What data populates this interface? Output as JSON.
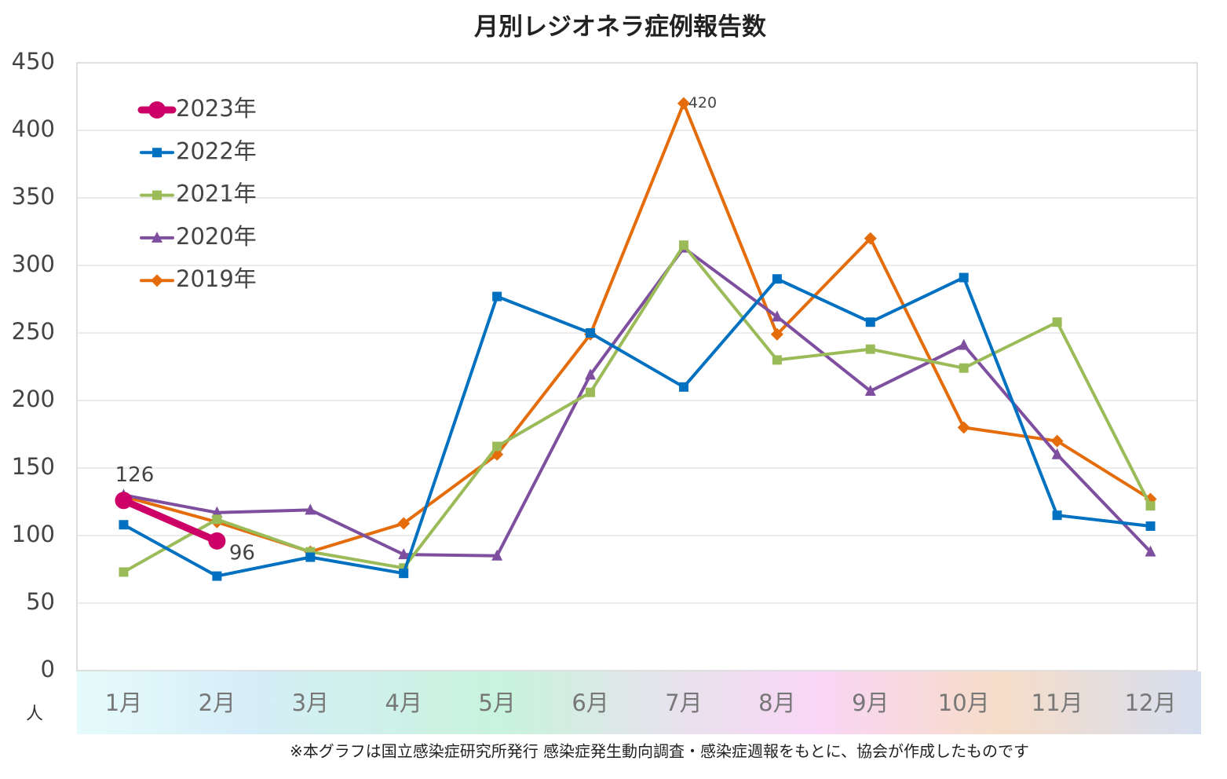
{
  "chart_data": {
    "type": "line",
    "title": "月別レジオネラ症例報告数",
    "y_unit": "人",
    "note": "※本グラフは国立感染症研究所発行 感染症発生動向調査・感染症週報をもとに、協会が作成したものです",
    "categories": [
      "1月",
      "2月",
      "3月",
      "4月",
      "5月",
      "6月",
      "7月",
      "8月",
      "9月",
      "10月",
      "11月",
      "12月"
    ],
    "ylim": [
      0,
      450
    ],
    "yticks": [
      0,
      50,
      100,
      150,
      200,
      250,
      300,
      350,
      400,
      450
    ],
    "grid": true,
    "legend": "upper left",
    "series": [
      {
        "name": "2023年",
        "color": "#cc0066",
        "marker": "circle",
        "values": [
          126,
          96,
          null,
          null,
          null,
          null,
          null,
          null,
          null,
          null,
          null,
          null
        ],
        "value_labels": [
          "126",
          "96",
          null,
          null,
          null,
          null,
          null,
          null,
          null,
          null,
          null,
          null
        ]
      },
      {
        "name": "2022年",
        "color": "#0070c0",
        "marker": "square",
        "values": [
          108,
          70,
          84,
          72,
          277,
          250,
          210,
          290,
          258,
          291,
          115,
          107
        ]
      },
      {
        "name": "2021年",
        "color": "#9bbb59",
        "marker": "square",
        "values": [
          73,
          112,
          88,
          76,
          166,
          206,
          315,
          230,
          238,
          224,
          258,
          122
        ]
      },
      {
        "name": "2020年",
        "color": "#7f4f9f",
        "marker": "triangle",
        "values": [
          130,
          117,
          119,
          86,
          85,
          219,
          313,
          262,
          207,
          241,
          160,
          88
        ]
      },
      {
        "name": "2019年",
        "color": "#e46c0a",
        "marker": "diamond",
        "values": [
          129,
          110,
          88,
          109,
          160,
          249,
          420,
          249,
          320,
          180,
          170,
          127
        ],
        "value_labels": [
          null,
          null,
          null,
          null,
          null,
          null,
          "420",
          null,
          null,
          null,
          null,
          null
        ]
      }
    ]
  }
}
